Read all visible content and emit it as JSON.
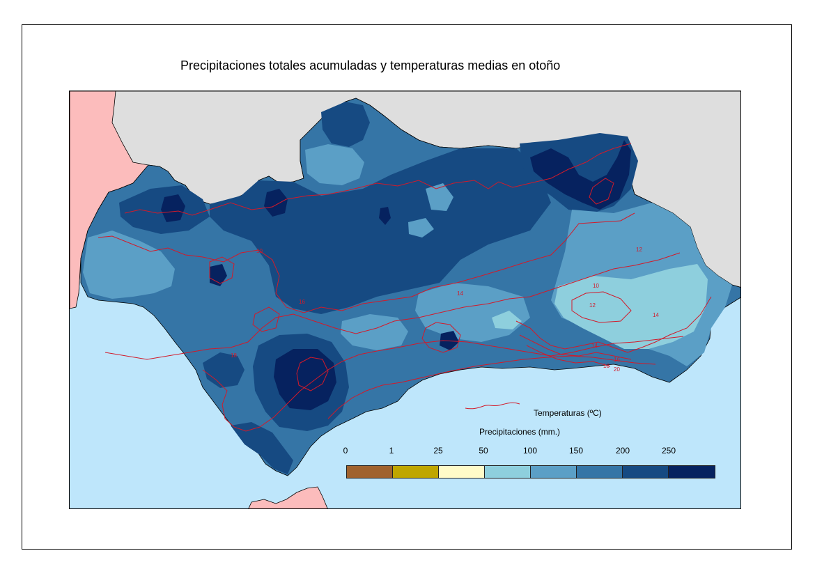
{
  "title": "Precipitaciones totales acumuladas y temperaturas medias en otoño",
  "legend": {
    "temperature_label": "Temperaturas (ºC)",
    "precip_title": "Precipitaciones (mm.)",
    "ticks": [
      "0",
      "1",
      "25",
      "50",
      "100",
      "150",
      "200",
      "250"
    ],
    "classes": [
      {
        "range": "0-1",
        "color": "#a0622d"
      },
      {
        "range": "1-25",
        "color": "#bfa600"
      },
      {
        "range": "25-50",
        "color": "#fffbc8"
      },
      {
        "range": "50-100",
        "color": "#8ecfdd"
      },
      {
        "range": "100-150",
        "color": "#5b9fc6"
      },
      {
        "range": "150-200",
        "color": "#3575a6"
      },
      {
        "range": "200-250",
        "color": "#164a82"
      },
      {
        "range": ">250",
        "color": "#06225f"
      }
    ]
  },
  "map": {
    "sea_color": "#bee6fb",
    "neighbor_land_color": "#dedede",
    "portugal_color": "#fcbcbc",
    "temperature_line_color": "#d21a2a",
    "contour_labels": [
      "10",
      "12",
      "14",
      "16",
      "18",
      "20"
    ]
  }
}
